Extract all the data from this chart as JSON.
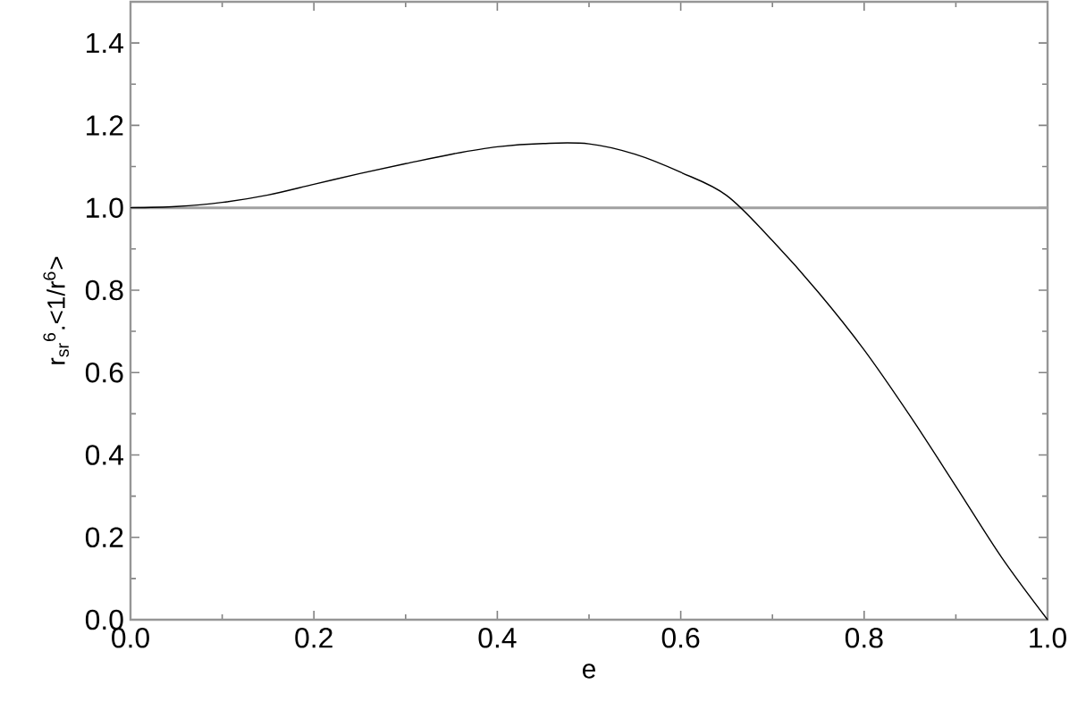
{
  "chart_data": {
    "type": "line",
    "xlabel": "e",
    "ylabel": "r$_{sr}$$^{6}$.<1/r$^{6}$>",
    "x": [
      0,
      0.05,
      0.1,
      0.15,
      0.2,
      0.25,
      0.3,
      0.35,
      0.4,
      0.45,
      0.5,
      0.55,
      0.6,
      0.65,
      0.7,
      0.75,
      0.8,
      0.85,
      0.9,
      0.95,
      1.0
    ],
    "series": [
      {
        "color": "#000000",
        "values": [
          1.0,
          1.003,
          1.013,
          1.031,
          1.057,
          1.083,
          1.107,
          1.13,
          1.148,
          1.156,
          1.155,
          1.13,
          1.086,
          1.03,
          0.92,
          0.795,
          0.655,
          0.495,
          0.324,
          0.151,
          0.0
        ]
      }
    ],
    "xlim": [
      0,
      1
    ],
    "ylim": [
      0,
      1.5
    ],
    "xticks": [
      {
        "value": 0,
        "label": "0.0"
      },
      0.2,
      0.4,
      0.6,
      0.8,
      {
        "value": 1,
        "label": "1.0"
      }
    ],
    "yticks": [
      {
        "value": 0,
        "label": "0.0"
      },
      0.2,
      0.4,
      0.6,
      0.8,
      {
        "value": 1,
        "label": "1.0"
      },
      1.2,
      1.4
    ],
    "ref_lines": [
      {
        "axis": "y",
        "value": 1.0,
        "color": "#a0a0a0"
      }
    ],
    "grid": false,
    "marker": "none",
    "line_style": "solid"
  }
}
